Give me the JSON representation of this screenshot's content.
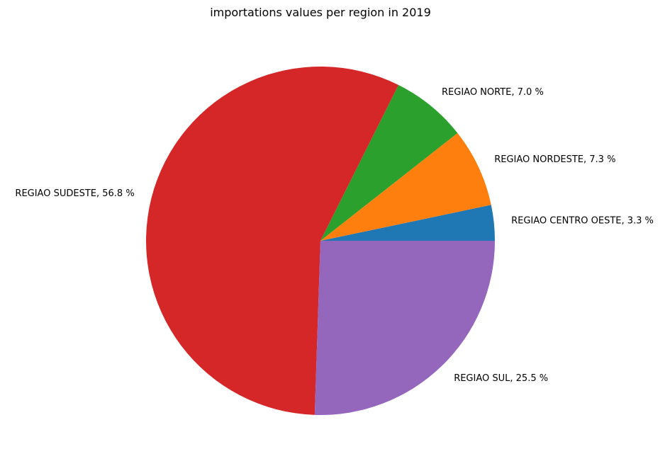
{
  "chart_data": {
    "type": "pie",
    "title": "importations values per region in 2019",
    "start_angle_deg": 0,
    "direction": "counterclockwise",
    "slices": [
      {
        "label": "REGIAO CENTRO OESTE",
        "value": 3.3,
        "display": "REGIAO CENTRO OESTE, 3.3 %",
        "color": "#1f77b4"
      },
      {
        "label": "REGIAO NORDESTE",
        "value": 7.3,
        "display": "REGIAO NORDESTE, 7.3 %",
        "color": "#ff7f0e"
      },
      {
        "label": "REGIAO NORTE",
        "value": 7.0,
        "display": "REGIAO NORTE, 7.0 %",
        "color": "#2ca02c"
      },
      {
        "label": "REGIAO SUDESTE",
        "value": 56.8,
        "display": "REGIAO SUDESTE, 56.8 %",
        "color": "#d62728"
      },
      {
        "label": "REGIAO SUL",
        "value": 25.5,
        "display": "REGIAO SUL, 25.5 %",
        "color": "#9467bd"
      }
    ]
  }
}
